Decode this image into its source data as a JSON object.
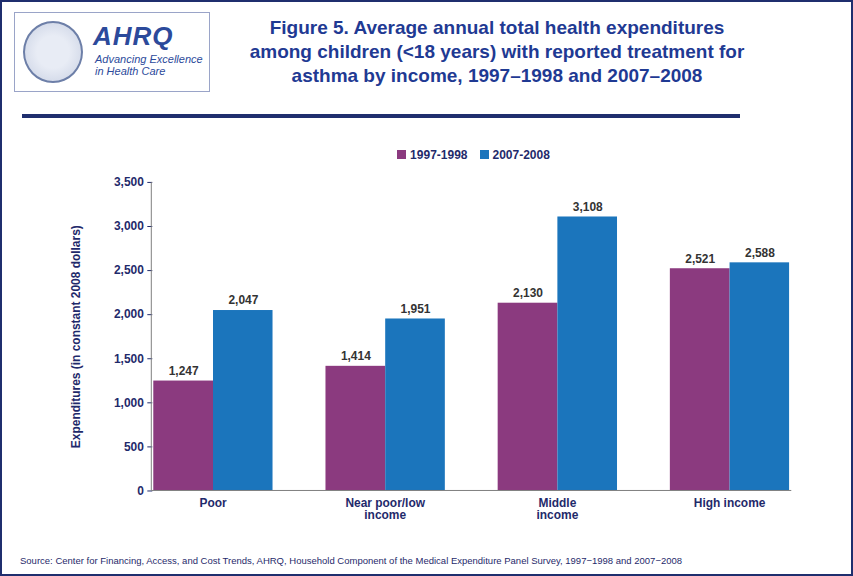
{
  "chart_data": {
    "type": "bar",
    "title": "Figure 5. Average annual total health expenditures\namong children (<18 years) with reported treatment for\nasthma by income, 1997–1998 and 2007–2008",
    "logo_text": [
      "AHRQ",
      "Advancing Excellence in Health Care"
    ],
    "y_label": "Expenditures (in constant 2008 dollars)",
    "source": "Source: Center for Financing, Access, and Cost Trends, AHRQ, Household Component of the Medical Expenditure Panel Survey, 1997−1998 and 2007−2008",
    "categories": [
      "Poor",
      "Near poor/low\nincome",
      "Middle\nincome",
      "High income"
    ],
    "series": [
      {
        "name": "1997-1998",
        "color": "#8B3A7F",
        "values": [
          1247,
          1414,
          2130,
          2521
        ],
        "value_labels": [
          "1,247",
          "1,414",
          "2,130",
          "2,521"
        ]
      },
      {
        "name": "2007-2008",
        "color": "#1B75BC",
        "values": [
          2047,
          1951,
          3108,
          2588
        ],
        "value_labels": [
          "2,047",
          "1,951",
          "3,108",
          "2,588"
        ]
      }
    ],
    "ylim": [
      0,
      3500
    ],
    "yticks": [
      0,
      500,
      {
        "value": 1000,
        "label": "1,000"
      },
      {
        "value": 1500,
        "label": "1,500"
      },
      {
        "value": 2000,
        "label": "2,000"
      },
      {
        "value": 2500,
        "label": "2,500"
      },
      {
        "value": 3000,
        "label": "3,000"
      },
      {
        "value": 3500,
        "label": "3,500"
      }
    ],
    "grid": false,
    "legend": "top",
    "data_labels": true
  }
}
